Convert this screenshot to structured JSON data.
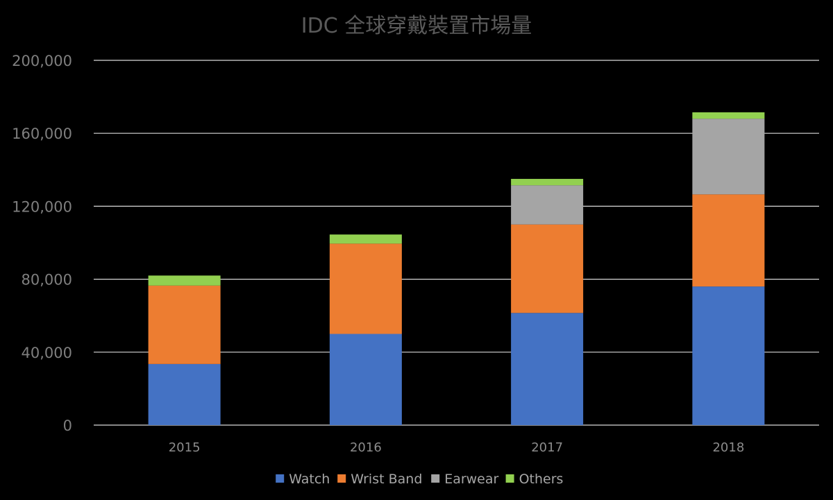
{
  "chart_data": {
    "type": "bar",
    "stacked": true,
    "title": "IDC 全球穿戴裝置市場量",
    "categories": [
      "2015",
      "2016",
      "2017",
      "2018"
    ],
    "series": [
      {
        "name": "Watch",
        "color": "#4472C4",
        "values": [
          33500,
          50000,
          61500,
          76000
        ]
      },
      {
        "name": "Wrist Band",
        "color": "#ED7D31",
        "values": [
          43000,
          49500,
          48500,
          50500
        ]
      },
      {
        "name": "Earwear",
        "color": "#A5A5A5",
        "values": [
          0,
          0,
          21500,
          41500
        ]
      },
      {
        "name": "Others",
        "color": "#92D050",
        "values": [
          5500,
          5000,
          3500,
          3500
        ]
      }
    ],
    "yticks": [
      "0",
      "40,000",
      "80,000",
      "120,000",
      "160,000",
      "200,000"
    ],
    "ylim": [
      0,
      200000
    ],
    "grid": true,
    "legend_position": "bottom",
    "colors": {
      "background": "#000000",
      "gridline": "#d9d9d9"
    }
  }
}
